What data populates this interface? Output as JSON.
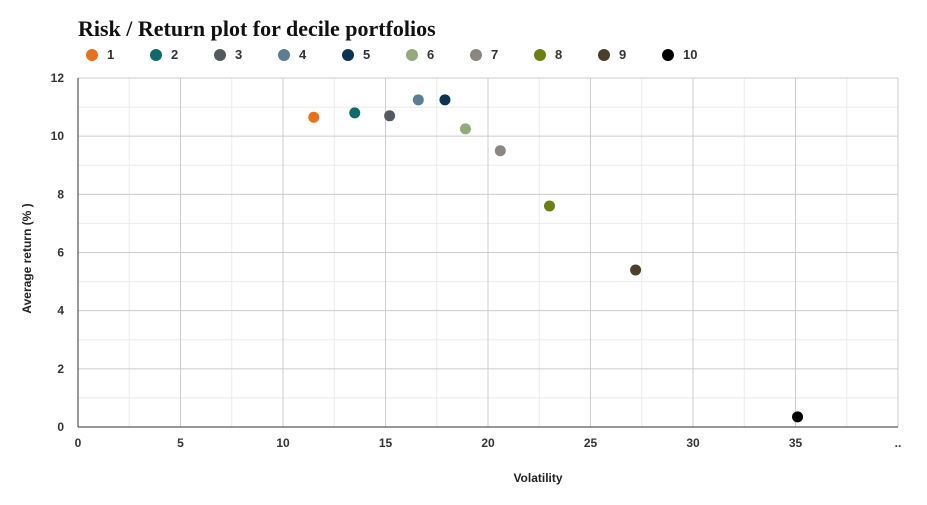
{
  "chart_data": {
    "type": "scatter",
    "title": "Risk / Return plot for decile portfolios",
    "xlabel": "Volatility",
    "ylabel": "Average return (% )",
    "xlim": [
      0,
      40
    ],
    "ylim": [
      0,
      12
    ],
    "x_ticks": [
      "0",
      "5",
      "10",
      "15",
      "20",
      "25",
      "30",
      "35"
    ],
    "x_tick_extra": "..",
    "y_ticks": [
      "0",
      "2",
      "4",
      "6",
      "8",
      "10",
      "12"
    ],
    "grid": true,
    "legend_position": "top",
    "series": [
      {
        "name": "1",
        "color": "#e8711a",
        "x": 11.5,
        "y": 10.65
      },
      {
        "name": "2",
        "color": "#0f6b6b",
        "x": 13.5,
        "y": 10.8
      },
      {
        "name": "3",
        "color": "#555a60",
        "x": 15.2,
        "y": 10.7
      },
      {
        "name": "4",
        "color": "#5a7f94",
        "x": 16.6,
        "y": 11.25
      },
      {
        "name": "5",
        "color": "#0b3354",
        "x": 17.9,
        "y": 11.25
      },
      {
        "name": "6",
        "color": "#93ab7c",
        "x": 18.9,
        "y": 10.25
      },
      {
        "name": "7",
        "color": "#8c8682",
        "x": 20.6,
        "y": 9.5
      },
      {
        "name": "8",
        "color": "#6b8010",
        "x": 23.0,
        "y": 7.6
      },
      {
        "name": "9",
        "color": "#4a3f2a",
        "x": 27.2,
        "y": 5.4
      },
      {
        "name": "10",
        "color": "#000000",
        "x": 35.1,
        "y": 0.35
      }
    ]
  }
}
